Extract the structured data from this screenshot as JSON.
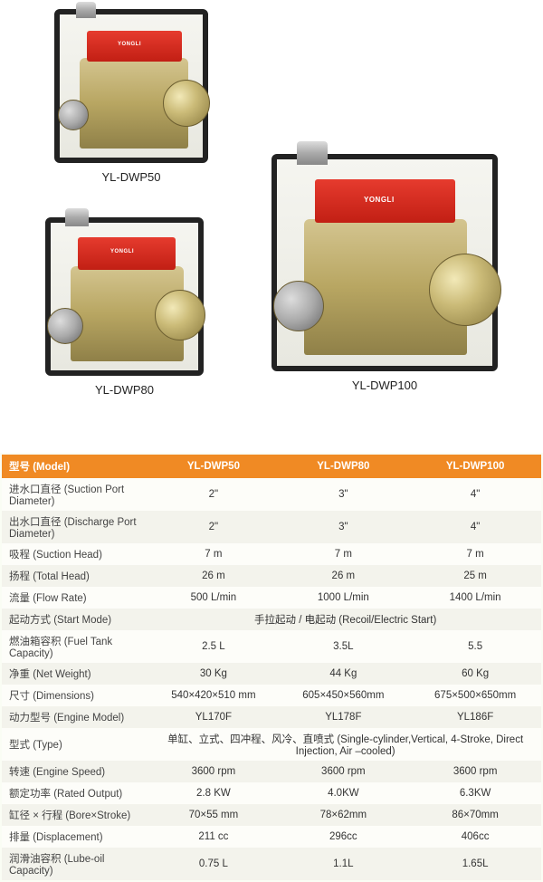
{
  "products": [
    {
      "label": "YL-DWP50"
    },
    {
      "label": "YL-DWP80"
    },
    {
      "label": "YL-DWP100"
    }
  ],
  "brand": "YONGLI",
  "table": {
    "header_bg": "#f08a24",
    "row_colors": [
      "#fdfdf9",
      "#f3f3ec"
    ],
    "columns": [
      "型号 (Model)",
      "YL-DWP50",
      "YL-DWP80",
      "YL-DWP100"
    ],
    "rows": [
      {
        "label": "进水口直径 (Suction Port Diameter)",
        "vals": [
          "2\"",
          "3\"",
          "4\""
        ]
      },
      {
        "label": "出水口直径 (Discharge Port Diameter)",
        "vals": [
          "2\"",
          "3\"",
          "4\""
        ]
      },
      {
        "label": "吸程 (Suction Head)",
        "vals": [
          "7 m",
          "7 m",
          "7 m"
        ]
      },
      {
        "label": "扬程 (Total Head)",
        "vals": [
          "26 m",
          "26 m",
          "25 m"
        ]
      },
      {
        "label": "流量 (Flow Rate)",
        "vals": [
          "500 L/min",
          "1000 L/min",
          "1400 L/min"
        ]
      },
      {
        "label": "起动方式 (Start Mode)",
        "span": "手拉起动 / 电起动 (Recoil/Electric Start)"
      },
      {
        "label": "燃油箱容积 (Fuel Tank Capacity)",
        "vals": [
          "2.5 L",
          "3.5L",
          "5.5"
        ]
      },
      {
        "label": "净重 (Net Weight)",
        "vals": [
          "30 Kg",
          "44 Kg",
          "60 Kg"
        ]
      },
      {
        "label": "尺寸 (Dimensions)",
        "vals": [
          "540×420×510 mm",
          "605×450×560mm",
          "675×500×650mm"
        ]
      },
      {
        "label": "动力型号 (Engine Model)",
        "vals": [
          "YL170F",
          "YL178F",
          "YL186F"
        ]
      },
      {
        "label": "型式 (Type)",
        "span": "单缸、立式、四冲程、风冷、直喷式 (Single-cylinder,Vertical, 4-Stroke, Direct Injection, Air –cooled)"
      },
      {
        "label": "转速 (Engine Speed)",
        "vals": [
          "3600 rpm",
          "3600 rpm",
          "3600 rpm"
        ]
      },
      {
        "label": "额定功率 (Rated  Output)",
        "vals": [
          "2.8 KW",
          "4.0KW",
          "6.3KW"
        ]
      },
      {
        "label": "缸径 × 行程 (Bore×Stroke)",
        "vals": [
          "70×55 mm",
          "78×62mm",
          "86×70mm"
        ]
      },
      {
        "label": "排量 (Displacement)",
        "vals": [
          "211 cc",
          "296cc",
          "406cc"
        ]
      },
      {
        "label": "润滑油容积 (Lube-oil Capacity)",
        "vals": [
          "0.75 L",
          "1.1L",
          "1.65L"
        ]
      }
    ]
  }
}
